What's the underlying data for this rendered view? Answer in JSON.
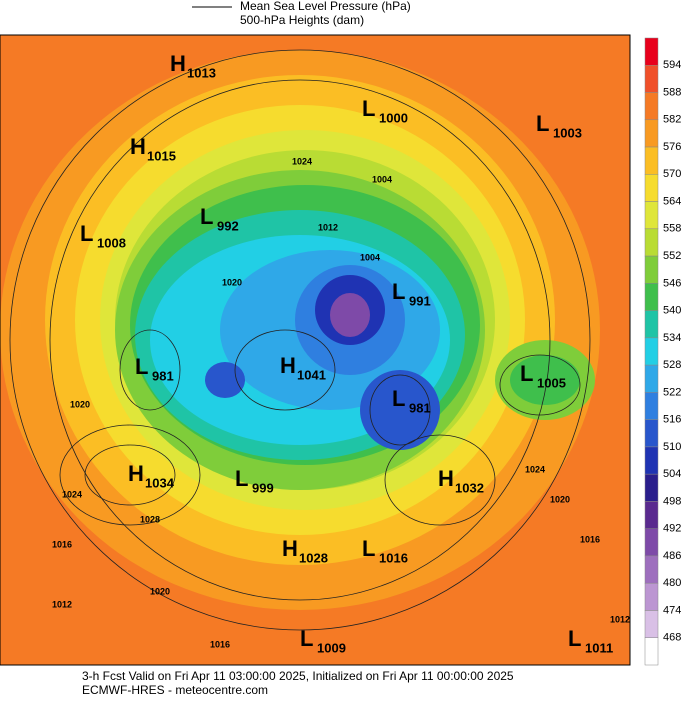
{
  "legend": {
    "items": [
      "Mean Sea Level Pressure (hPa)",
      "500-hPa Heights (dam)"
    ]
  },
  "pressure_centers": [
    {
      "type": "H",
      "value": "1013"
    },
    {
      "type": "L",
      "value": "1000"
    },
    {
      "type": "L",
      "value": "1003"
    },
    {
      "type": "H",
      "value": "1015"
    },
    {
      "type": "L",
      "value": "992"
    },
    {
      "type": "L",
      "value": "1008"
    },
    {
      "type": "L",
      "value": "991"
    },
    {
      "type": "L",
      "value": "981"
    },
    {
      "type": "H",
      "value": "1041"
    },
    {
      "type": "L",
      "value": "1005"
    },
    {
      "type": "L",
      "value": "981"
    },
    {
      "type": "H",
      "value": "1034"
    },
    {
      "type": "L",
      "value": "999"
    },
    {
      "type": "H",
      "value": "1032"
    },
    {
      "type": "H",
      "value": "1028"
    },
    {
      "type": "L",
      "value": "1016"
    },
    {
      "type": "L",
      "value": "1009"
    },
    {
      "type": "L",
      "value": "1011"
    }
  ],
  "contour_labels": [
    "1024",
    "1004",
    "1012",
    "1020",
    "1004",
    "1020",
    "1024",
    "1028",
    "1016",
    "1012",
    "1020",
    "1016",
    "1024",
    "1020",
    "1016",
    "1012"
  ],
  "colorbar": {
    "labels": [
      594,
      588,
      582,
      576,
      570,
      564,
      558,
      552,
      546,
      540,
      534,
      528,
      522,
      516,
      510,
      504,
      498,
      492,
      486,
      480,
      474,
      468
    ],
    "colors": [
      "#e8001c",
      "#f0502a",
      "#f57a25",
      "#f89a22",
      "#fbbe24",
      "#f6dc2e",
      "#dfe63a",
      "#b9dc34",
      "#7fcd3a",
      "#3fbf4c",
      "#1fc4a6",
      "#22cfe5",
      "#2fa8e8",
      "#2f7fe0",
      "#2856cc",
      "#1f33b3",
      "#2a1e8c",
      "#5a2a8f",
      "#7e4aa8",
      "#9e6fbe",
      "#bc96d2",
      "#d9c0e6",
      "#ffffff"
    ]
  },
  "footer": {
    "line1": "3-h Fcst Valid on Fri Apr 11 03:00:00 2025, Initialized on Fri Apr 11 00:00:00 2025",
    "line2": "ECMWF-HRES - meteocentre.com"
  }
}
